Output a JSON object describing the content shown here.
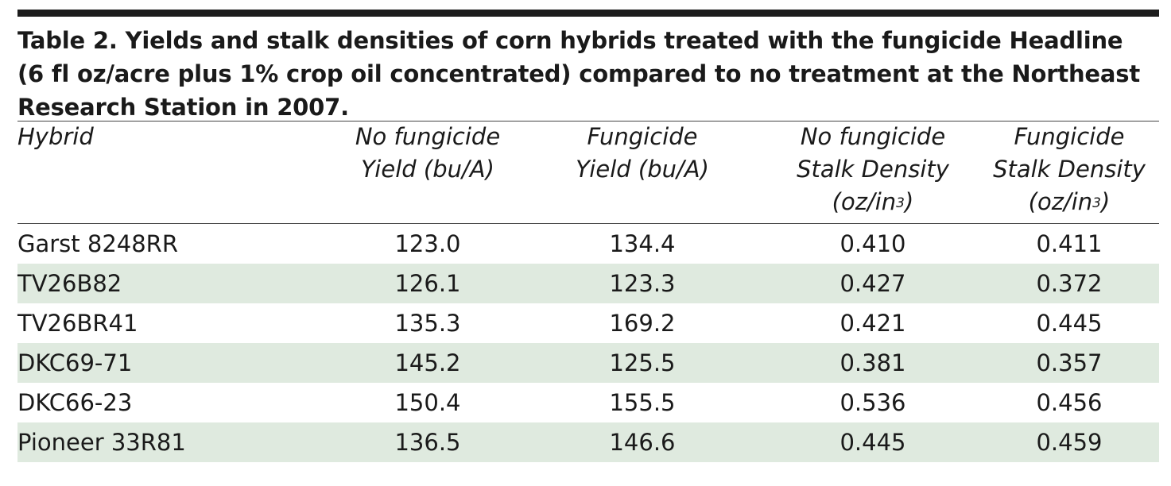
{
  "table": {
    "caption_lines": [
      "Table 2. Yields and stalk densities of corn hybrids treated with the fungicide Headline",
      "(6 fl oz/acre plus 1% crop oil concentrated) compared to no treatment at the Northeast",
      "Research Station in 2007."
    ],
    "headers": {
      "hybrid": "Hybrid",
      "no_fungicide_yield": [
        "No fungicide",
        "Yield (bu/A)"
      ],
      "fungicide_yield": [
        "Fungicide",
        "Yield (bu/A)"
      ],
      "no_fungicide_density": [
        "No fungicide",
        "Stalk Density",
        "(oz/in",
        "3",
        ")"
      ],
      "fungicide_density": [
        "Fungicide",
        "Stalk Density",
        "(oz/in",
        "3",
        ")"
      ]
    },
    "rows": [
      {
        "hybrid": "Garst 8248RR",
        "no_fungicide_yield": "123.0",
        "fungicide_yield": "134.4",
        "no_fungicide_density": "0.410",
        "fungicide_density": "0.411"
      },
      {
        "hybrid": "TV26B82",
        "no_fungicide_yield": "126.1",
        "fungicide_yield": "123.3",
        "no_fungicide_density": "0.427",
        "fungicide_density": "0.372"
      },
      {
        "hybrid": "TV26BR41",
        "no_fungicide_yield": "135.3",
        "fungicide_yield": "169.2",
        "no_fungicide_density": "0.421",
        "fungicide_density": "0.445"
      },
      {
        "hybrid": "DKC69-71",
        "no_fungicide_yield": "145.2",
        "fungicide_yield": "125.5",
        "no_fungicide_density": "0.381",
        "fungicide_density": "0.357"
      },
      {
        "hybrid": "DKC66-23",
        "no_fungicide_yield": "150.4",
        "fungicide_yield": "155.5",
        "no_fungicide_density": "0.536",
        "fungicide_density": "0.456"
      },
      {
        "hybrid": "Pioneer 33R81",
        "no_fungicide_yield": "136.5",
        "fungicide_yield": "146.6",
        "no_fungicide_density": "0.445",
        "fungicide_density": "0.459"
      }
    ],
    "colors": {
      "shade": "#dfeadf",
      "rule": "#1c1c1c",
      "text": "#1a1a1a"
    }
  }
}
